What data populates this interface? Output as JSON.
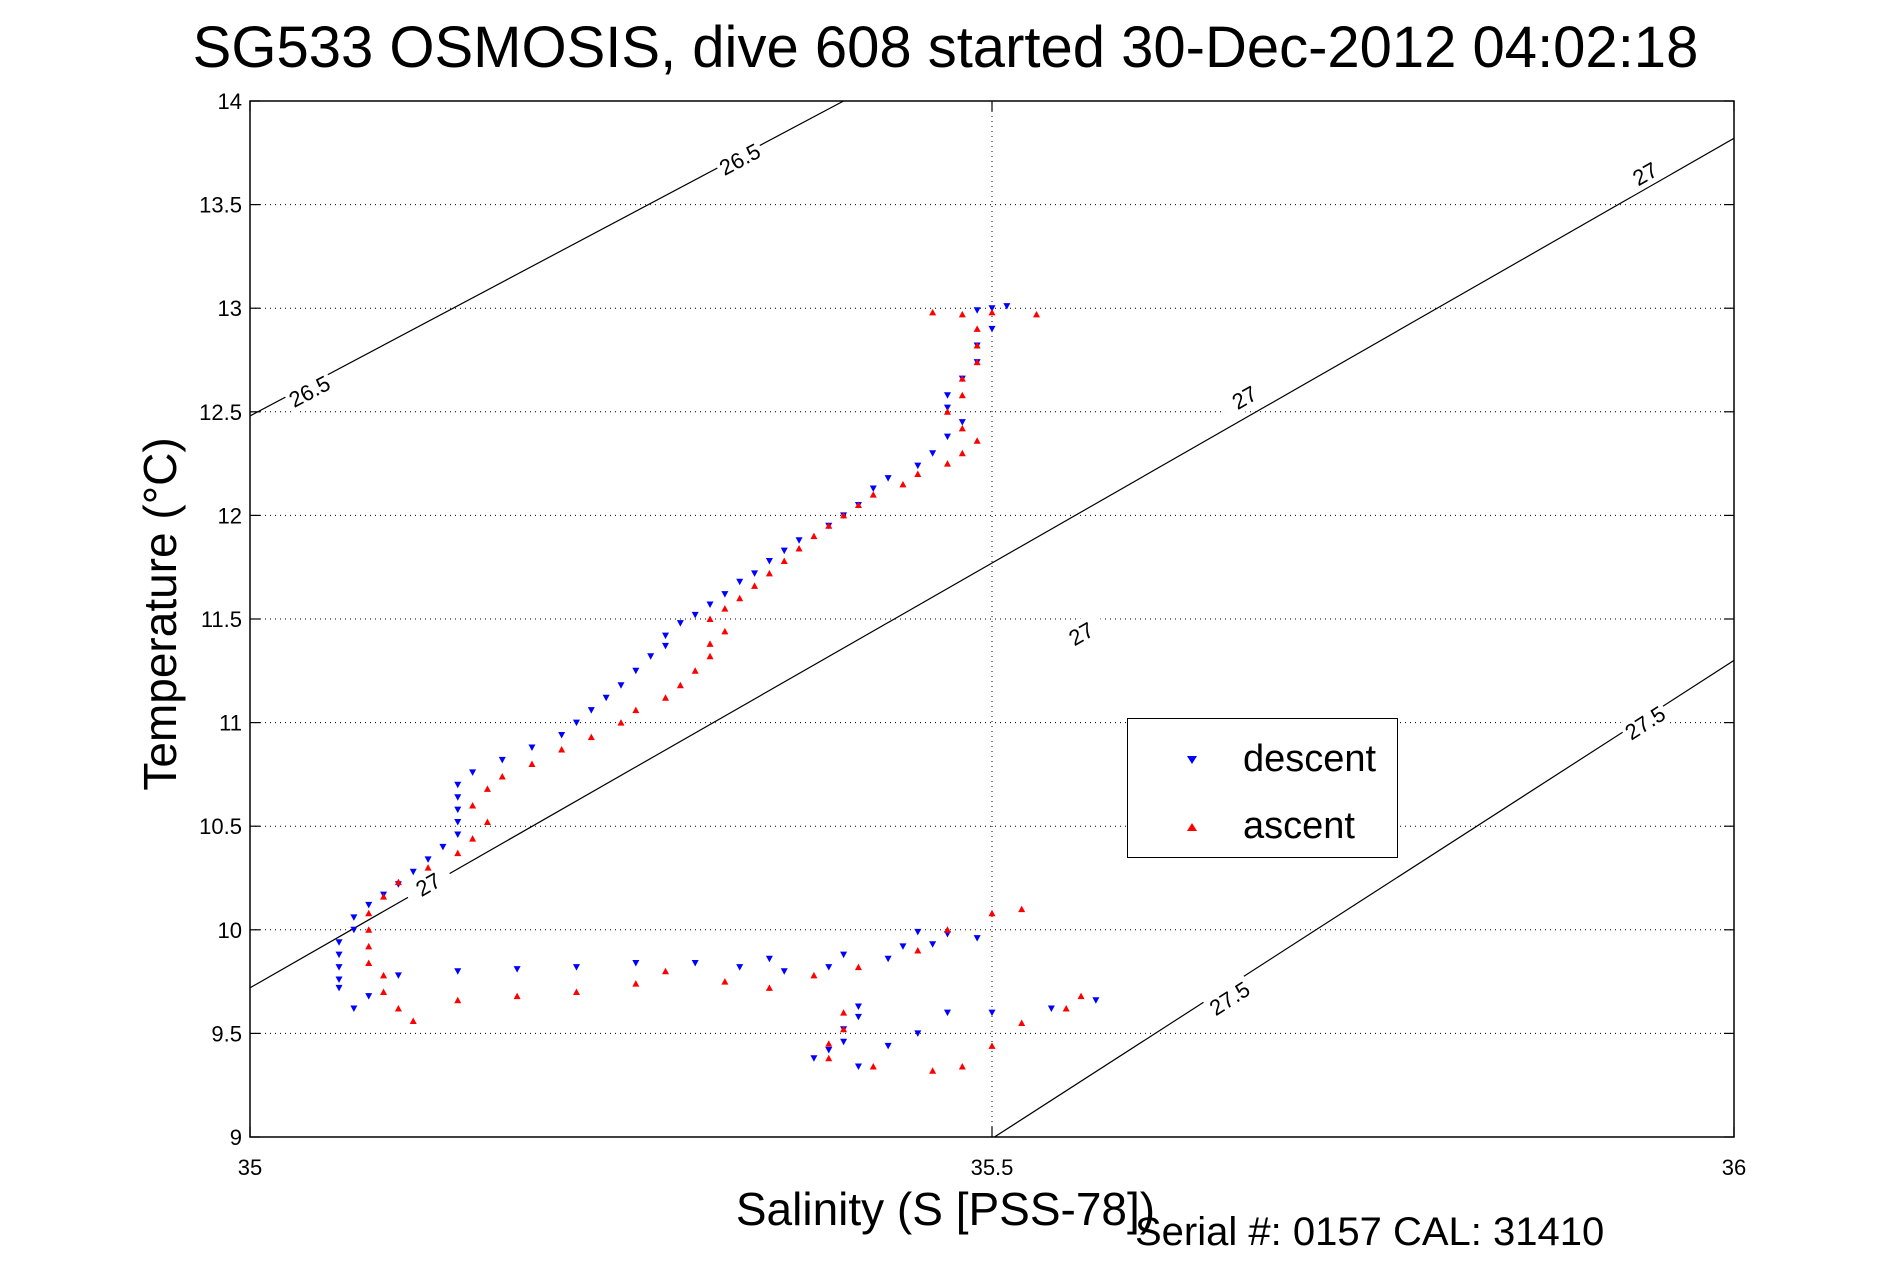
{
  "title": "SG533 OSMOSIS, dive 608 started 30-Dec-2012 04:02:18",
  "footer": "Serial #: 0157  CAL: 31410",
  "legend": {
    "descent_label": "descent",
    "ascent_label": "ascent",
    "placement": "right-middle"
  },
  "chart_data": {
    "type": "scatter",
    "xlabel": "Salinity (S [PSS-78])",
    "ylabel": "Temperature (°C)",
    "xlim": [
      35,
      36
    ],
    "ylim": [
      9,
      14
    ],
    "xticks": [
      "35",
      "35.5",
      "36"
    ],
    "yticks": [
      "9",
      "9.5",
      "10",
      "10.5",
      "11",
      "11.5",
      "12",
      "12.5",
      "13",
      "13.5",
      "14"
    ],
    "grid": true,
    "contour_lines": [
      {
        "level": "26.5",
        "points": [
          [
            35.0,
            12.48
          ],
          [
            35.4,
            14.0
          ]
        ],
        "labels": [
          [
            35.04,
            12.6
          ],
          [
            35.33,
            13.72
          ]
        ]
      },
      {
        "level": "27",
        "points": [
          [
            35.0,
            9.72
          ],
          [
            36.0,
            13.82
          ]
        ],
        "labels": [
          [
            35.12,
            10.22
          ],
          [
            35.56,
            11.43
          ],
          [
            35.67,
            12.57
          ],
          [
            35.94,
            13.65
          ]
        ]
      },
      {
        "level": "27.5",
        "points": [
          [
            35.48,
            8.9
          ],
          [
            36.0,
            11.3
          ]
        ],
        "labels": [
          [
            35.66,
            9.67
          ],
          [
            35.94,
            11.0
          ]
        ]
      }
    ],
    "series": [
      {
        "name": "descent",
        "color": "#0000ff",
        "marker": "triangle-down",
        "points": [
          [
            35.51,
            13.01
          ],
          [
            35.5,
            13.0
          ],
          [
            35.49,
            12.99
          ],
          [
            35.5,
            12.9
          ],
          [
            35.49,
            12.82
          ],
          [
            35.49,
            12.74
          ],
          [
            35.48,
            12.66
          ],
          [
            35.47,
            12.58
          ],
          [
            35.47,
            12.52
          ],
          [
            35.48,
            12.45
          ],
          [
            35.47,
            12.38
          ],
          [
            35.46,
            12.3
          ],
          [
            35.45,
            12.24
          ],
          [
            35.43,
            12.18
          ],
          [
            35.42,
            12.13
          ],
          [
            35.41,
            12.05
          ],
          [
            35.4,
            12.0
          ],
          [
            35.39,
            11.95
          ],
          [
            35.37,
            11.88
          ],
          [
            35.36,
            11.83
          ],
          [
            35.35,
            11.78
          ],
          [
            35.34,
            11.72
          ],
          [
            35.33,
            11.68
          ],
          [
            35.32,
            11.62
          ],
          [
            35.31,
            11.57
          ],
          [
            35.3,
            11.52
          ],
          [
            35.29,
            11.48
          ],
          [
            35.28,
            11.42
          ],
          [
            35.28,
            11.37
          ],
          [
            35.27,
            11.32
          ],
          [
            35.26,
            11.25
          ],
          [
            35.25,
            11.18
          ],
          [
            35.24,
            11.12
          ],
          [
            35.23,
            11.06
          ],
          [
            35.22,
            11.0
          ],
          [
            35.21,
            10.94
          ],
          [
            35.19,
            10.88
          ],
          [
            35.17,
            10.82
          ],
          [
            35.15,
            10.76
          ],
          [
            35.14,
            10.7
          ],
          [
            35.14,
            10.64
          ],
          [
            35.14,
            10.58
          ],
          [
            35.14,
            10.52
          ],
          [
            35.14,
            10.46
          ],
          [
            35.13,
            10.4
          ],
          [
            35.12,
            10.34
          ],
          [
            35.11,
            10.28
          ],
          [
            35.1,
            10.22
          ],
          [
            35.09,
            10.17
          ],
          [
            35.08,
            10.12
          ],
          [
            35.07,
            10.06
          ],
          [
            35.07,
            10.0
          ],
          [
            35.06,
            9.94
          ],
          [
            35.06,
            9.88
          ],
          [
            35.06,
            9.82
          ],
          [
            35.06,
            9.76
          ],
          [
            35.06,
            9.72
          ],
          [
            35.08,
            9.68
          ],
          [
            35.07,
            9.62
          ],
          [
            35.1,
            9.78
          ],
          [
            35.14,
            9.8
          ],
          [
            35.18,
            9.81
          ],
          [
            35.22,
            9.82
          ],
          [
            35.26,
            9.84
          ],
          [
            35.3,
            9.84
          ],
          [
            35.33,
            9.82
          ],
          [
            35.35,
            9.86
          ],
          [
            35.36,
            9.8
          ],
          [
            35.39,
            9.82
          ],
          [
            35.4,
            9.88
          ],
          [
            35.43,
            9.86
          ],
          [
            35.44,
            9.92
          ],
          [
            35.45,
            9.99
          ],
          [
            35.47,
            9.98
          ],
          [
            35.49,
            9.96
          ],
          [
            35.46,
            9.93
          ],
          [
            35.41,
            9.63
          ],
          [
            35.41,
            9.58
          ],
          [
            35.4,
            9.52
          ],
          [
            35.4,
            9.46
          ],
          [
            35.39,
            9.42
          ],
          [
            35.38,
            9.38
          ],
          [
            35.41,
            9.34
          ],
          [
            35.43,
            9.44
          ],
          [
            35.45,
            9.5
          ],
          [
            35.47,
            9.6
          ],
          [
            35.5,
            9.6
          ],
          [
            35.54,
            9.62
          ],
          [
            35.57,
            9.66
          ]
        ]
      },
      {
        "name": "ascent",
        "color": "#ff0000",
        "marker": "triangle-up",
        "points": [
          [
            35.46,
            12.98
          ],
          [
            35.48,
            12.97
          ],
          [
            35.5,
            12.98
          ],
          [
            35.53,
            12.97
          ],
          [
            35.49,
            12.9
          ],
          [
            35.49,
            12.82
          ],
          [
            35.49,
            12.74
          ],
          [
            35.48,
            12.66
          ],
          [
            35.48,
            12.58
          ],
          [
            35.47,
            12.5
          ],
          [
            35.48,
            12.42
          ],
          [
            35.49,
            12.36
          ],
          [
            35.48,
            12.3
          ],
          [
            35.47,
            12.25
          ],
          [
            35.45,
            12.2
          ],
          [
            35.44,
            12.15
          ],
          [
            35.42,
            12.1
          ],
          [
            35.41,
            12.05
          ],
          [
            35.4,
            12.0
          ],
          [
            35.39,
            11.95
          ],
          [
            35.38,
            11.9
          ],
          [
            35.37,
            11.84
          ],
          [
            35.36,
            11.78
          ],
          [
            35.35,
            11.72
          ],
          [
            35.34,
            11.66
          ],
          [
            35.33,
            11.6
          ],
          [
            35.32,
            11.55
          ],
          [
            35.31,
            11.5
          ],
          [
            35.32,
            11.44
          ],
          [
            35.31,
            11.38
          ],
          [
            35.31,
            11.32
          ],
          [
            35.3,
            11.25
          ],
          [
            35.29,
            11.18
          ],
          [
            35.28,
            11.12
          ],
          [
            35.26,
            11.06
          ],
          [
            35.25,
            11.0
          ],
          [
            35.23,
            10.93
          ],
          [
            35.21,
            10.87
          ],
          [
            35.19,
            10.8
          ],
          [
            35.17,
            10.74
          ],
          [
            35.16,
            10.68
          ],
          [
            35.15,
            10.6
          ],
          [
            35.16,
            10.52
          ],
          [
            35.15,
            10.44
          ],
          [
            35.14,
            10.37
          ],
          [
            35.12,
            10.3
          ],
          [
            35.1,
            10.23
          ],
          [
            35.09,
            10.16
          ],
          [
            35.08,
            10.08
          ],
          [
            35.08,
            10.0
          ],
          [
            35.08,
            9.92
          ],
          [
            35.08,
            9.84
          ],
          [
            35.09,
            9.78
          ],
          [
            35.09,
            9.7
          ],
          [
            35.1,
            9.62
          ],
          [
            35.11,
            9.56
          ],
          [
            35.14,
            9.66
          ],
          [
            35.18,
            9.68
          ],
          [
            35.22,
            9.7
          ],
          [
            35.26,
            9.74
          ],
          [
            35.28,
            9.8
          ],
          [
            35.32,
            9.75
          ],
          [
            35.35,
            9.72
          ],
          [
            35.38,
            9.78
          ],
          [
            35.41,
            9.82
          ],
          [
            35.45,
            9.9
          ],
          [
            35.47,
            10.0
          ],
          [
            35.5,
            10.08
          ],
          [
            35.52,
            10.1
          ],
          [
            35.4,
            9.6
          ],
          [
            35.4,
            9.52
          ],
          [
            35.39,
            9.45
          ],
          [
            35.39,
            9.38
          ],
          [
            35.42,
            9.34
          ],
          [
            35.46,
            9.32
          ],
          [
            35.48,
            9.34
          ],
          [
            35.5,
            9.44
          ],
          [
            35.52,
            9.55
          ],
          [
            35.55,
            9.62
          ],
          [
            35.56,
            9.68
          ]
        ]
      }
    ]
  }
}
